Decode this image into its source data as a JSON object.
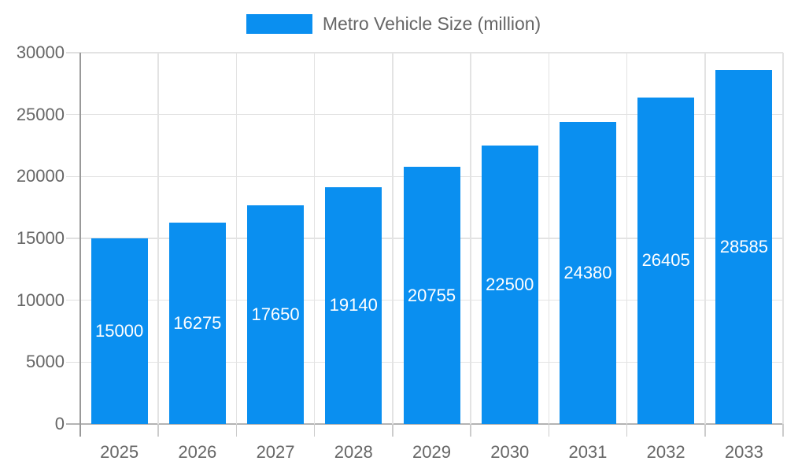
{
  "chart_data": {
    "type": "bar",
    "title": "",
    "legend": "Metro Vehicle Size (million)",
    "legend_position": "top",
    "categories": [
      "2025",
      "2026",
      "2027",
      "2028",
      "2029",
      "2030",
      "2031",
      "2032",
      "2033"
    ],
    "series": [
      {
        "name": "Metro Vehicle Size (million)",
        "values": [
          15000,
          16275,
          17650,
          19140,
          20755,
          22500,
          24380,
          26405,
          28585
        ]
      }
    ],
    "value_labels_shown": true,
    "xlabel": "",
    "ylabel": "",
    "ylim": [
      0,
      30000
    ],
    "yticks": [
      0,
      5000,
      10000,
      15000,
      20000,
      25000,
      30000
    ],
    "grid": true,
    "colors": {
      "bar": "#0a8ff0",
      "value_label": "#ffffff",
      "axis_text": "#666666",
      "gridline": "#e3e3e3",
      "zero_line": "#b3b3b3",
      "axis_line": "#999999"
    }
  }
}
